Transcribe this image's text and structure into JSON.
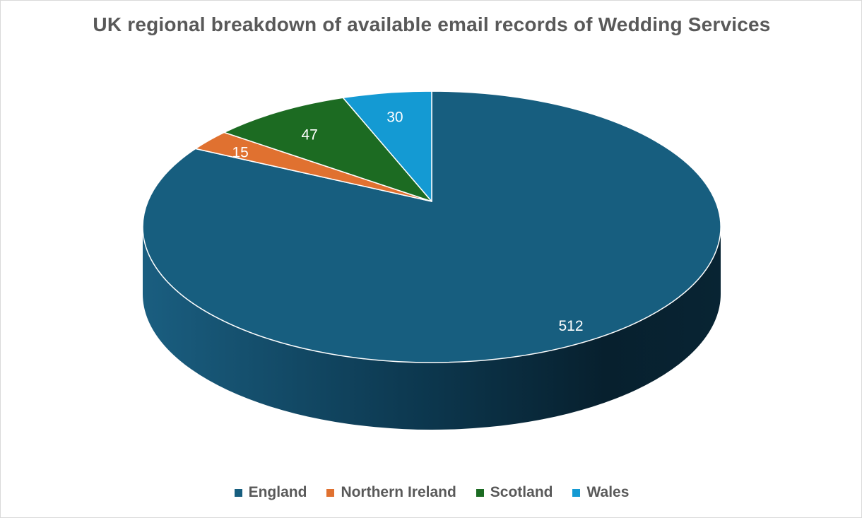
{
  "chart_data": {
    "type": "pie",
    "title": "UK regional breakdown of available email records of Wedding Services",
    "slices": [
      {
        "label": "England",
        "value": 512,
        "color": "#175E7F"
      },
      {
        "label": "Northern Ireland",
        "value": 15,
        "color": "#E07130"
      },
      {
        "label": "Scotland",
        "value": 47,
        "color": "#1C6B22"
      },
      {
        "label": "Wales",
        "value": 30,
        "color": "#149AD3"
      }
    ],
    "style": "3d",
    "data_labels": true,
    "legend_position": "bottom"
  }
}
